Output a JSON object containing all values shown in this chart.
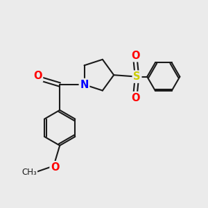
{
  "bg_color": "#ebebeb",
  "bond_color": "#1a1a1a",
  "bond_width": 1.5,
  "atom_colors": {
    "O": "#ff0000",
    "N": "#0000ff",
    "S": "#cccc00",
    "C": "#1a1a1a"
  },
  "font_size_atom": 10.5,
  "figsize": [
    3.0,
    3.0
  ],
  "dpi": 100,
  "xlim": [
    -0.5,
    5.5
  ],
  "ylim": [
    -3.8,
    1.8
  ]
}
